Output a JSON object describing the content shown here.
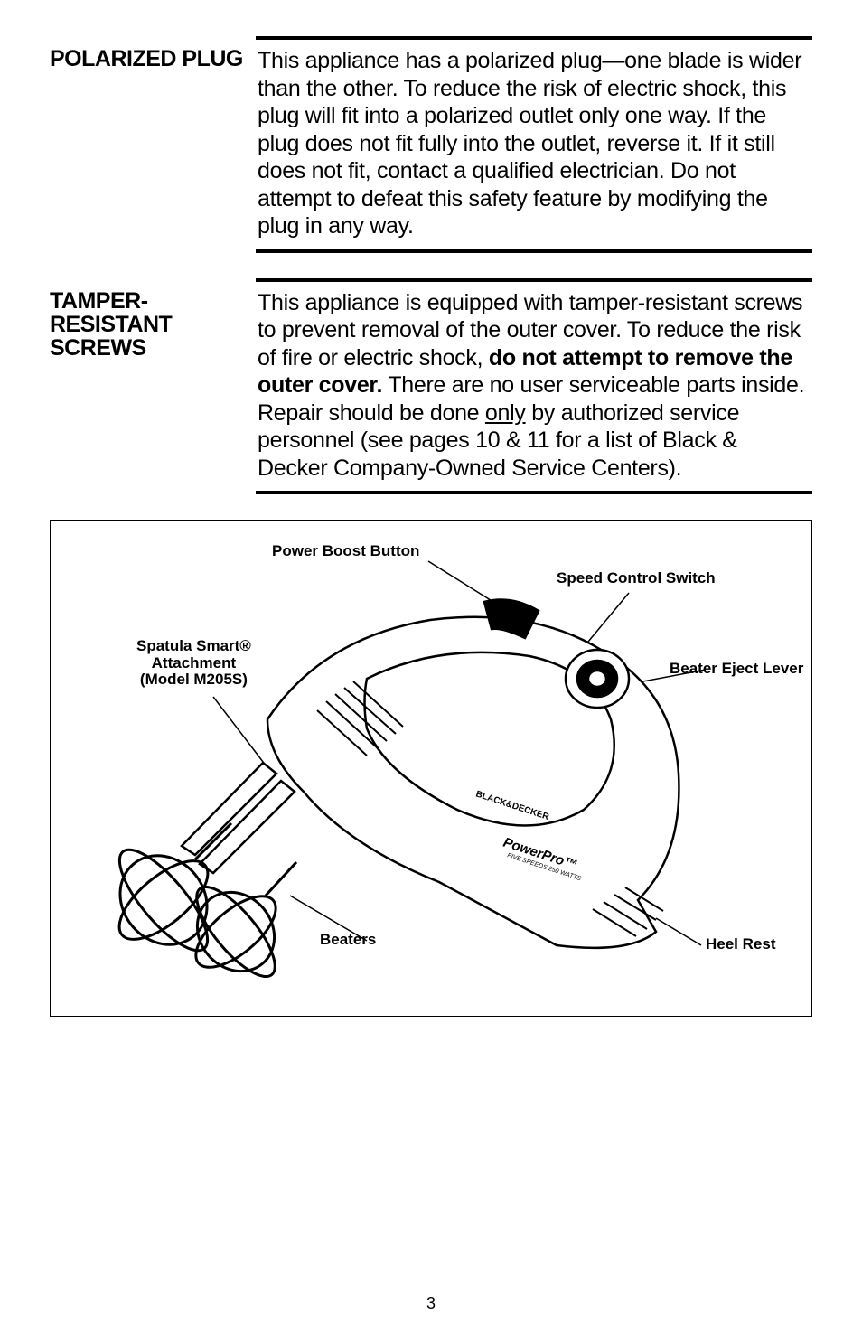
{
  "sections": [
    {
      "heading": "POLARIZED PLUG",
      "body_html": "This appliance has a polarized plug—one blade is wider than the other. To reduce the risk of electric shock, this plug will fit into a polarized outlet only one way. If the plug does not fit fully into the outlet, reverse it. If it still does not fit, contact a qualified electrician. Do not attempt to defeat this safety feature by modifying the plug in any way."
    },
    {
      "heading": "TAMPER-\nRESISTANT\nSCREWS",
      "body_html": "This appliance is equipped with tamper-resistant screws to prevent removal of the outer cover. To reduce the risk of fire or electric shock, <b>do not attempt to remove the outer cover.</b> There are no user serviceable parts inside. Repair should be done <span class=\"underline\">only</span> by authorized service personnel (see pages 10 & 11 for a list of Black & Decker Company-Owned Service Centers)."
    }
  ],
  "diagram_labels": {
    "power_boost": "Power Boost Button",
    "speed_control": "Speed Control Switch",
    "spatula": "Spatula Smart®\nAttachment\n(Model M205S)",
    "beater_eject": "Beater Eject Lever",
    "beaters": "Beaters",
    "heel_rest": "Heel Rest"
  },
  "page_number": "3",
  "colors": {
    "text": "#000000",
    "background": "#ffffff",
    "rule": "#000000"
  }
}
